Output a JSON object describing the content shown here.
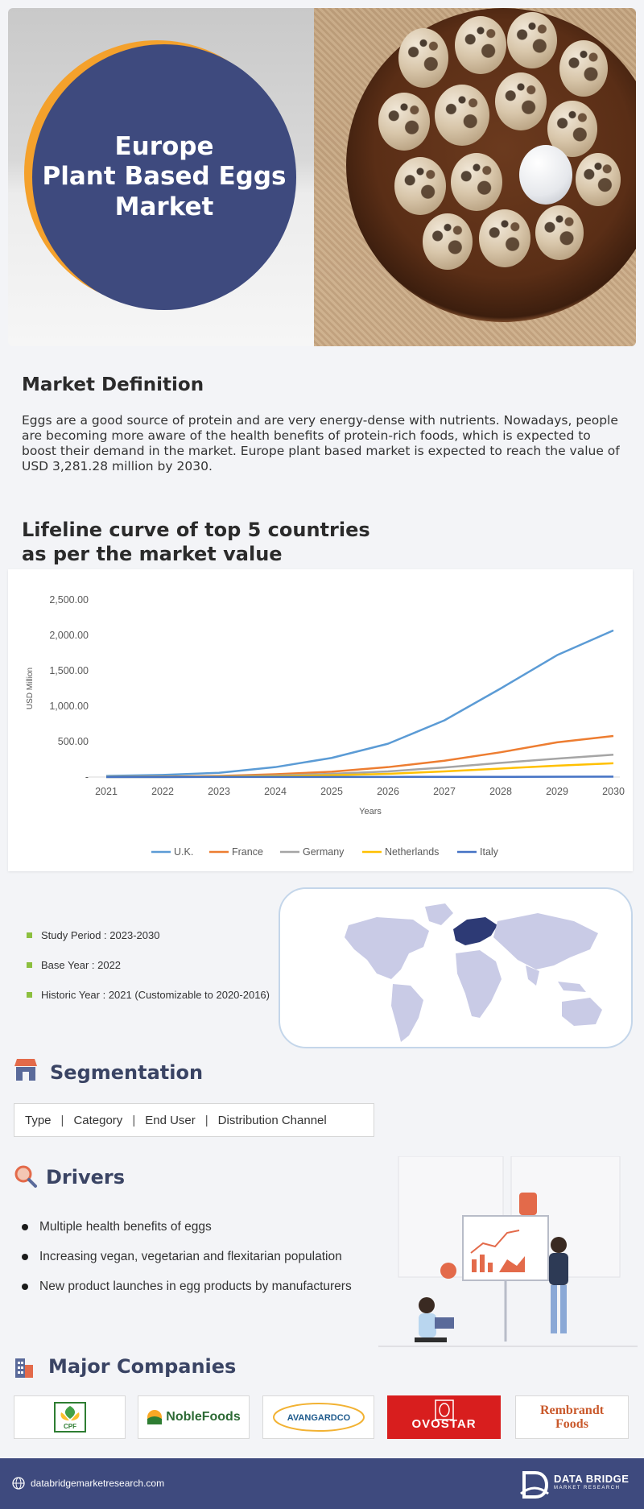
{
  "hero": {
    "title": "Europe\nPlant Based Eggs\nMarket"
  },
  "market_definition": {
    "title": "Market Definition",
    "text": "Eggs are a good source of protein and are very energy-dense with nutrients. Nowadays, people are becoming more aware of the health benefits of protein-rich foods, which is expected to boost their demand in the market. Europe plant based market is expected to reach the value of USD  3,281.28 million by 2030."
  },
  "lifeline": {
    "title": "Lifeline curve of top 5 countries\nas per the market value"
  },
  "chart_data": {
    "type": "line",
    "title": "",
    "xlabel": "Years",
    "ylabel": "USD Million",
    "x": [
      "2021",
      "2022",
      "2023",
      "2024",
      "2025",
      "2026",
      "2027",
      "2028",
      "2029",
      "2030"
    ],
    "y_ticks": [
      "2,500.00",
      "2,000.00",
      "1,500.00",
      "1,000.00",
      "500.00",
      "-"
    ],
    "ylim": [
      0,
      2500
    ],
    "legend_position": "bottom",
    "grid": false,
    "series": [
      {
        "name": "U.K.",
        "color": "#5b9bd5",
        "values": [
          15,
          30,
          60,
          140,
          270,
          470,
          800,
          1250,
          1720,
          2070
        ]
      },
      {
        "name": "France",
        "color": "#ed7d31",
        "values": [
          3,
          6,
          15,
          40,
          75,
          140,
          230,
          350,
          490,
          580
        ]
      },
      {
        "name": "Germany",
        "color": "#a5a5a5",
        "values": [
          2,
          4,
          9,
          22,
          45,
          80,
          135,
          200,
          260,
          315
        ]
      },
      {
        "name": "Netherlands",
        "color": "#ffc000",
        "values": [
          1,
          2,
          5,
          12,
          25,
          45,
          80,
          120,
          160,
          195
        ]
      },
      {
        "name": "Italy",
        "color": "#4472c4",
        "values": [
          0,
          0,
          1,
          1,
          2,
          2,
          3,
          3,
          4,
          5
        ]
      }
    ]
  },
  "study_info": {
    "items": [
      "Study Period : 2023-2030",
      "Base Year : 2022",
      "Historic Year : 2021 (Customizable to 2020-2016)"
    ]
  },
  "map": {
    "highlight_color": "#2d3a75",
    "base_color": "#c9cbe6"
  },
  "segmentation": {
    "title": "Segmentation",
    "items": [
      "Type",
      "Category",
      "End User",
      "Distribution Channel"
    ],
    "separator": "|"
  },
  "drivers": {
    "title": "Drivers",
    "items": [
      "Multiple health benefits of eggs",
      "Increasing vegan, vegetarian and flexitarian population",
      "New product launches in egg products by manufacturers"
    ]
  },
  "companies": {
    "title": "Major Companies",
    "cpf": "CPF",
    "noble": "NobleFoods",
    "avangardco": "AVANGARDCO",
    "ovostar": "OVOSTAR",
    "rembrandt": "Rembrandt\nFoods"
  },
  "footer": {
    "url": "databridgemarketresearch.com",
    "brand": "DATA BRIDGE",
    "brand_sub": "MARKET RESEARCH"
  }
}
